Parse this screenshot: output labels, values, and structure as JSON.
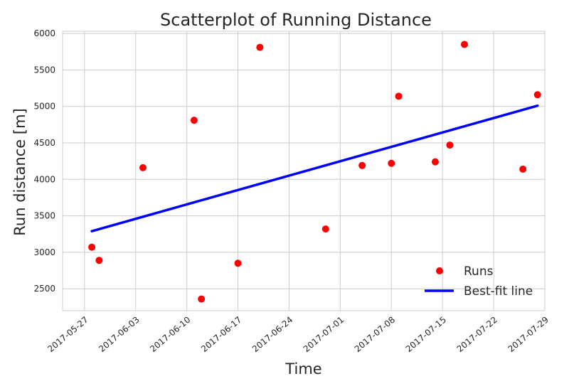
{
  "chart_data": {
    "type": "scatter",
    "title": "Scatterplot of Running Distance",
    "xlabel": "Time",
    "ylabel": "Run distance [m]",
    "x_type": "date",
    "xlim": [
      "2017-05-24",
      "2017-07-29"
    ],
    "ylim": [
      2200,
      6030
    ],
    "x_ticks": [
      "2017-05-27",
      "2017-06-03",
      "2017-06-10",
      "2017-06-17",
      "2017-06-24",
      "2017-07-01",
      "2017-07-08",
      "2017-07-15",
      "2017-07-22",
      "2017-07-29"
    ],
    "y_ticks": [
      2500,
      3000,
      3500,
      4000,
      4500,
      5000,
      5500,
      6000
    ],
    "grid": true,
    "legend_position": "bottom-right",
    "series": [
      {
        "name": "Runs",
        "kind": "scatter",
        "color": "#ff0000",
        "points": [
          {
            "x": "2017-05-28",
            "y": 3070
          },
          {
            "x": "2017-05-29",
            "y": 2890
          },
          {
            "x": "2017-06-04",
            "y": 4160
          },
          {
            "x": "2017-06-11",
            "y": 4810
          },
          {
            "x": "2017-06-12",
            "y": 2360
          },
          {
            "x": "2017-06-17",
            "y": 2850
          },
          {
            "x": "2017-06-20",
            "y": 5810
          },
          {
            "x": "2017-06-29",
            "y": 3320
          },
          {
            "x": "2017-07-04",
            "y": 4190
          },
          {
            "x": "2017-07-08",
            "y": 4220
          },
          {
            "x": "2017-07-09",
            "y": 5140
          },
          {
            "x": "2017-07-14",
            "y": 4240
          },
          {
            "x": "2017-07-16",
            "y": 4470
          },
          {
            "x": "2017-07-18",
            "y": 5850
          },
          {
            "x": "2017-07-26",
            "y": 4140
          },
          {
            "x": "2017-07-28",
            "y": 5160
          }
        ]
      },
      {
        "name": "Best-fit line",
        "kind": "line",
        "color": "#0000ff",
        "points": [
          {
            "x": "2017-05-28",
            "y": 3290
          },
          {
            "x": "2017-07-28",
            "y": 5010
          }
        ]
      }
    ]
  }
}
